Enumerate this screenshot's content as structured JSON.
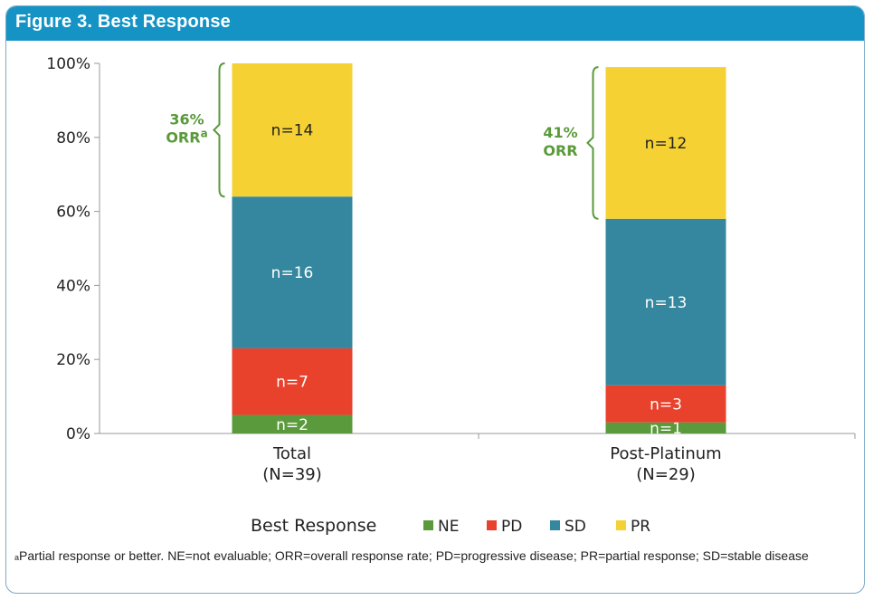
{
  "header": {
    "title": "Figure 3. Best Response"
  },
  "chart_data": {
    "type": "bar",
    "stacked": true,
    "categories": [
      "Total",
      "Post-Platinum"
    ],
    "category_sublabels": [
      "(N=39)",
      "(N=29)"
    ],
    "ylim": [
      0,
      100
    ],
    "yticks": [
      "0%",
      "20%",
      "40%",
      "60%",
      "80%",
      "100%"
    ],
    "ytick_values": [
      0,
      20,
      40,
      60,
      80,
      100
    ],
    "series": [
      {
        "name": "NE",
        "color": "#5b9a3c",
        "values": [
          5,
          3
        ],
        "labels": [
          "n=2",
          "n=1"
        ]
      },
      {
        "name": "PD",
        "color": "#e8412c",
        "values": [
          18,
          10
        ],
        "labels": [
          "n=7",
          "n=3"
        ]
      },
      {
        "name": "SD",
        "color": "#34879e",
        "values": [
          41,
          45
        ],
        "labels": [
          "n=16",
          "n=13"
        ]
      },
      {
        "name": "PR",
        "color": "#f5d134",
        "values": [
          36,
          41
        ],
        "labels": [
          "n=14",
          "n=12"
        ]
      }
    ],
    "annotations": [
      {
        "line1": "36%",
        "line2": "ORR",
        "sup": "a"
      },
      {
        "line1": "41%",
        "line2": "ORR",
        "sup": ""
      }
    ],
    "legend": {
      "title": "Best Response",
      "placement": "bottom"
    }
  },
  "footnote": {
    "sup": "a",
    "text": "Partial response or better.  NE=not evaluable; ORR=overall response rate; PD=progressive disease; PR=partial response; SD=stable disease"
  }
}
